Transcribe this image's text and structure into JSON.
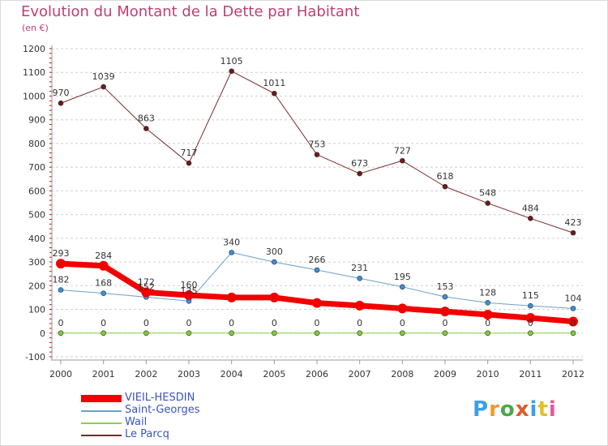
{
  "title": "Evolution du Montant de la Dette par Habitant",
  "subtitle": "(en €)",
  "brand": {
    "text": "Proxiti",
    "colors": [
      "#3da0e0",
      "#f09a2b",
      "#4aa84a",
      "#e05a2b",
      "#3da0e0",
      "#e0c02b",
      "#e05a9a"
    ]
  },
  "chart_data": {
    "type": "line",
    "categories": [
      "2000",
      "2001",
      "2002",
      "2003",
      "2004",
      "2005",
      "2006",
      "2007",
      "2008",
      "2009",
      "2010",
      "2011",
      "2012"
    ],
    "ylim": [
      -100,
      1200
    ],
    "yticks": [
      -100,
      0,
      100,
      200,
      300,
      400,
      500,
      600,
      700,
      800,
      900,
      1000,
      1100,
      1200
    ],
    "grid": "horizontal dashed",
    "legend_position": "bottom-left",
    "series": [
      {
        "name": "VIEIL-HESDIN",
        "color": "#f20000",
        "marker": "#f20000",
        "width": 7,
        "values": [
          293,
          284,
          172,
          160,
          150,
          150,
          127,
          116,
          104,
          91,
          78,
          64,
          49
        ],
        "labels": [
          "293",
          "284",
          "172",
          "160",
          "",
          "",
          "",
          "",
          "",
          "",
          "",
          "",
          ""
        ]
      },
      {
        "name": "Saint-Georges",
        "color": "#6ca0cc",
        "marker": "#3d8fd6",
        "width": 1,
        "values": [
          182,
          168,
          152,
          135,
          340,
          300,
          266,
          231,
          195,
          153,
          128,
          115,
          104
        ],
        "labels": [
          "182",
          "168",
          "152",
          "135",
          "340",
          "300",
          "266",
          "231",
          "195",
          "153",
          "128",
          "115",
          "104"
        ]
      },
      {
        "name": "Wail",
        "color": "#88d050",
        "marker": "#7ccf3a",
        "width": 1,
        "values": [
          0,
          0,
          0,
          0,
          0,
          0,
          0,
          0,
          0,
          0,
          0,
          0,
          0
        ],
        "labels": [
          "0",
          "0",
          "0",
          "0",
          "0",
          "0",
          "0",
          "0",
          "0",
          "0",
          "0",
          "0",
          "0"
        ]
      },
      {
        "name": "Le Parcq",
        "color": "#7a2a2a",
        "marker": "#6b1b1b",
        "width": 1,
        "values": [
          970,
          1039,
          863,
          717,
          1105,
          1011,
          753,
          673,
          727,
          618,
          548,
          484,
          423
        ],
        "labels": [
          "970",
          "1039",
          "863",
          "717",
          "1105",
          "1011",
          "753",
          "673",
          "727",
          "618",
          "548",
          "484",
          "423"
        ]
      }
    ]
  }
}
